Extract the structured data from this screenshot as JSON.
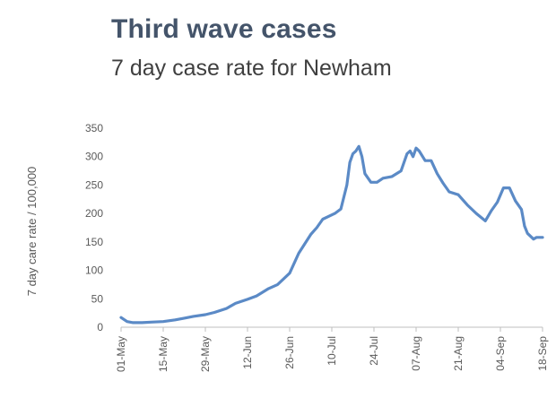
{
  "chart_data": {
    "type": "line",
    "title": "Third wave cases",
    "subtitle": "7 day case rate for Newham",
    "ylabel": "7 day care rate / 100,000",
    "xlabel": "",
    "ylim": [
      0,
      350
    ],
    "yticks": [
      0,
      50,
      100,
      150,
      200,
      250,
      300,
      350
    ],
    "xticks": [
      "01-May",
      "15-May",
      "29-May",
      "12-Jun",
      "26-Jun",
      "10-Jul",
      "24-Jul",
      "07-Aug",
      "21-Aug",
      "04-Sep",
      "18-Sep"
    ],
    "grid": false,
    "line_color": "#5b8ac6",
    "series": [
      {
        "x": [
          "01-May",
          "03-May",
          "05-May",
          "08-May",
          "11-May",
          "15-May",
          "19-May",
          "22-May",
          "25-May",
          "29-May",
          "01-Jun",
          "05-Jun",
          "08-Jun",
          "12-Jun",
          "15-Jun",
          "19-Jun",
          "22-Jun",
          "26-Jun",
          "29-Jun",
          "03-Jul",
          "05-Jul",
          "07-Jul",
          "09-Jul",
          "11-Jul",
          "13-Jul",
          "15-Jul",
          "16-Jul",
          "17-Jul",
          "18-Jul",
          "19-Jul",
          "20-Jul",
          "21-Jul",
          "23-Jul",
          "25-Jul",
          "27-Jul",
          "30-Jul",
          "02-Aug",
          "04-Aug",
          "05-Aug",
          "06-Aug",
          "07-Aug",
          "08-Aug",
          "10-Aug",
          "12-Aug",
          "14-Aug",
          "16-Aug",
          "18-Aug",
          "21-Aug",
          "24-Aug",
          "27-Aug",
          "30-Aug",
          "01-Sep",
          "03-Sep",
          "05-Sep",
          "07-Sep",
          "09-Sep",
          "11-Sep",
          "12-Sep",
          "13-Sep",
          "15-Sep",
          "16-Sep",
          "18-Sep"
        ],
        "values": [
          17,
          10,
          8,
          8,
          9,
          10,
          13,
          16,
          19,
          22,
          26,
          33,
          42,
          49,
          55,
          68,
          75,
          95,
          130,
          163,
          175,
          190,
          195,
          200,
          208,
          250,
          290,
          305,
          310,
          318,
          300,
          270,
          255,
          255,
          262,
          265,
          275,
          305,
          310,
          300,
          315,
          310,
          293,
          293,
          270,
          253,
          238,
          233,
          215,
          200,
          187,
          205,
          220,
          245,
          245,
          222,
          207,
          178,
          165,
          155,
          158,
          158
        ]
      }
    ]
  }
}
